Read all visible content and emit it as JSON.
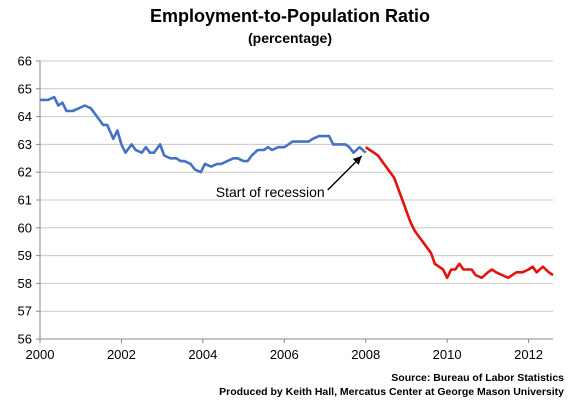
{
  "chart_data": {
    "type": "line",
    "title": "Employment-to-Population Ratio",
    "subtitle": "(percentage)",
    "xlabel": "",
    "ylabel": "",
    "xlim": [
      2000,
      2012.6
    ],
    "ylim": [
      56,
      66
    ],
    "x_ticks": [
      2000,
      2002,
      2004,
      2006,
      2008,
      2010,
      2012
    ],
    "y_ticks": [
      56,
      57,
      58,
      59,
      60,
      61,
      62,
      63,
      64,
      65,
      66
    ],
    "grid": "horizontal",
    "legend": "none",
    "series": [
      {
        "color": "#4472C4",
        "x": [
          2000.0,
          2000.2,
          2000.35,
          2000.45,
          2000.55,
          2000.65,
          2000.8,
          2000.95,
          2001.1,
          2001.25,
          2001.4,
          2001.55,
          2001.65,
          2001.8,
          2001.9,
          2002.0,
          2002.1,
          2002.25,
          2002.35,
          2002.5,
          2002.6,
          2002.7,
          2002.8,
          2002.95,
          2003.05,
          2003.2,
          2003.35,
          2003.45,
          2003.55,
          2003.7,
          2003.8,
          2003.95,
          2004.05,
          2004.2,
          2004.35,
          2004.45,
          2004.6,
          2004.75,
          2004.85,
          2005.0,
          2005.1,
          2005.2,
          2005.35,
          2005.5,
          2005.6,
          2005.7,
          2005.85,
          2006.0,
          2006.1,
          2006.2,
          2006.35,
          2006.5,
          2006.6,
          2006.7,
          2006.85,
          2007.0,
          2007.1,
          2007.2,
          2007.35,
          2007.5,
          2007.6,
          2007.7,
          2007.85,
          2008.0
        ],
        "values": [
          64.6,
          64.6,
          64.7,
          64.4,
          64.5,
          64.2,
          64.2,
          64.3,
          64.4,
          64.3,
          64.0,
          63.7,
          63.7,
          63.2,
          63.5,
          63.0,
          62.7,
          63.0,
          62.8,
          62.7,
          62.9,
          62.7,
          62.7,
          63.0,
          62.6,
          62.5,
          62.5,
          62.4,
          62.4,
          62.3,
          62.1,
          62.0,
          62.3,
          62.2,
          62.3,
          62.3,
          62.4,
          62.5,
          62.5,
          62.4,
          62.4,
          62.6,
          62.8,
          62.8,
          62.9,
          62.8,
          62.9,
          62.9,
          63.0,
          63.1,
          63.1,
          63.1,
          63.1,
          63.2,
          63.3,
          63.3,
          63.3,
          63.0,
          63.0,
          63.0,
          62.9,
          62.7,
          62.9,
          62.7
        ]
      },
      {
        "color": "#E3120B",
        "x": [
          2008.0,
          2008.1,
          2008.2,
          2008.3,
          2008.45,
          2008.6,
          2008.7,
          2008.8,
          2008.9,
          2009.0,
          2009.1,
          2009.2,
          2009.3,
          2009.4,
          2009.5,
          2009.6,
          2009.7,
          2009.8,
          2009.9,
          2010.0,
          2010.1,
          2010.2,
          2010.3,
          2010.4,
          2010.5,
          2010.6,
          2010.7,
          2010.85,
          2011.0,
          2011.1,
          2011.2,
          2011.35,
          2011.5,
          2011.6,
          2011.7,
          2011.85,
          2012.0,
          2012.1,
          2012.2,
          2012.35,
          2012.5,
          2012.6
        ],
        "values": [
          62.9,
          62.8,
          62.7,
          62.6,
          62.3,
          62.0,
          61.8,
          61.4,
          61.0,
          60.6,
          60.2,
          59.9,
          59.7,
          59.5,
          59.3,
          59.1,
          58.7,
          58.6,
          58.5,
          58.2,
          58.5,
          58.5,
          58.7,
          58.5,
          58.5,
          58.5,
          58.3,
          58.2,
          58.4,
          58.5,
          58.4,
          58.3,
          58.2,
          58.3,
          58.4,
          58.4,
          58.5,
          58.6,
          58.4,
          58.6,
          58.4,
          58.3
        ]
      }
    ],
    "annotations": [
      {
        "text": "Start of recession",
        "arrow_to": {
          "x": 2008.0,
          "y": 62.8
        }
      }
    ],
    "sources": [
      "Source: Bureau of Labor Statistics",
      "Produced by Keith Hall, Mercatus Center at George Mason University"
    ]
  }
}
